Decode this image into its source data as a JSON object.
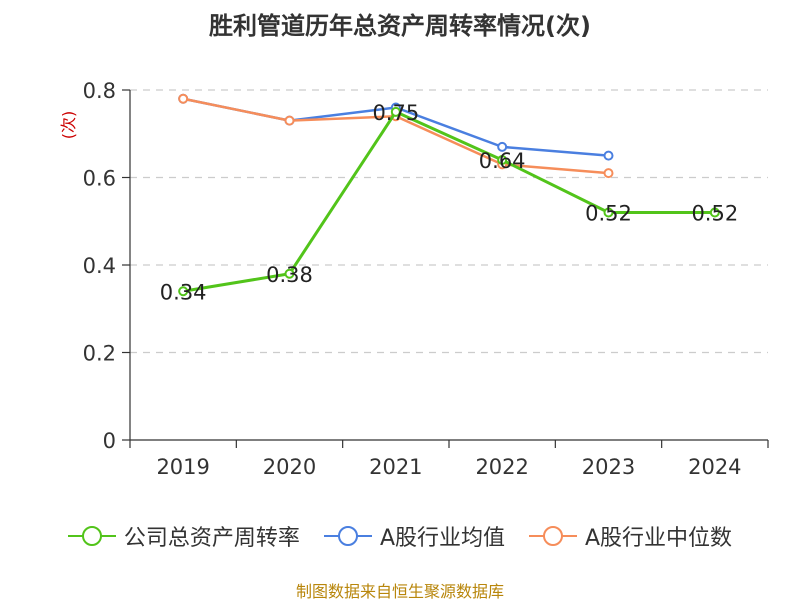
{
  "chart_data": {
    "type": "line",
    "title": "胜利管道历年总资产周转率情况(次)",
    "ylabel": "(次)",
    "categories": [
      "2019",
      "2020",
      "2021",
      "2022",
      "2023",
      "2024"
    ],
    "ylim": [
      0,
      0.8
    ],
    "y_ticks": [
      "0",
      "0.2",
      "0.4",
      "0.6",
      "0.8"
    ],
    "grid": true,
    "legend_position": "bottom",
    "series": [
      {
        "name": "公司总资产周转率",
        "values": [
          0.34,
          0.38,
          0.75,
          0.64,
          0.52,
          0.52
        ],
        "color": "#52c41a",
        "labels": [
          "0.34",
          "0.38",
          "0.75",
          "0.64",
          "0.52",
          "0.52"
        ]
      },
      {
        "name": "A股行业均值",
        "values": [
          0.78,
          0.73,
          0.76,
          0.67,
          0.65,
          null
        ],
        "color": "#4a7fe0"
      },
      {
        "name": "A股行业中位数",
        "values": [
          0.78,
          0.73,
          0.74,
          0.63,
          0.61,
          null
        ],
        "color": "#f68d5a"
      }
    ],
    "source": "制图数据来自恒生聚源数据库"
  }
}
